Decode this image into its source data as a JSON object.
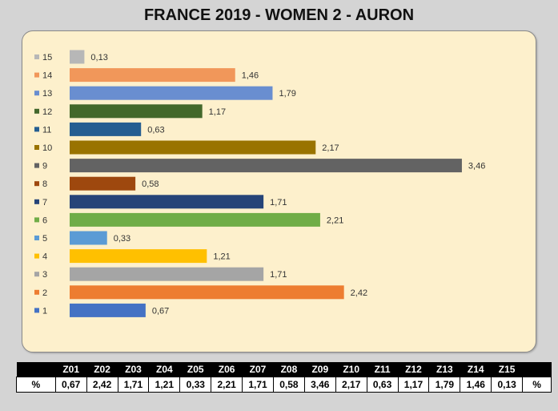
{
  "chart_data": {
    "type": "bar",
    "orientation": "horizontal",
    "title": "FRANCE 2019 - WOMEN 2 - AURON",
    "categories": [
      "1",
      "2",
      "3",
      "4",
      "5",
      "6",
      "7",
      "8",
      "9",
      "10",
      "11",
      "12",
      "13",
      "14",
      "15"
    ],
    "values": [
      0.67,
      2.42,
      1.71,
      1.21,
      0.33,
      2.21,
      1.71,
      0.58,
      3.46,
      2.17,
      0.63,
      1.17,
      1.79,
      1.46,
      0.13
    ],
    "value_labels": [
      "0,67",
      "2,42",
      "1,71",
      "1,21",
      "0,33",
      "2,21",
      "1,71",
      "0,58",
      "3,46",
      "2,17",
      "0,63",
      "1,17",
      "1,79",
      "1,46",
      "0,13"
    ],
    "colors": [
      "#4472c4",
      "#ed7d31",
      "#a5a5a5",
      "#ffc000",
      "#5b9bd5",
      "#70ad47",
      "#264478",
      "#9e480e",
      "#636363",
      "#997300",
      "#255e91",
      "#43682b",
      "#698ed0",
      "#f1975a",
      "#b7b7b7"
    ],
    "legend_placement": "left",
    "grid": false
  },
  "table": {
    "row_label": "%",
    "unit_label": "%",
    "headers": [
      "Z01",
      "Z02",
      "Z03",
      "Z04",
      "Z05",
      "Z06",
      "Z07",
      "Z08",
      "Z09",
      "Z10",
      "Z11",
      "Z12",
      "Z13",
      "Z14",
      "Z15"
    ],
    "values": [
      "0,67",
      "2,42",
      "1,71",
      "1,21",
      "0,33",
      "2,21",
      "1,71",
      "0,58",
      "3,46",
      "2,17",
      "0,63",
      "1,17",
      "1,79",
      "1,46",
      "0,13"
    ]
  }
}
